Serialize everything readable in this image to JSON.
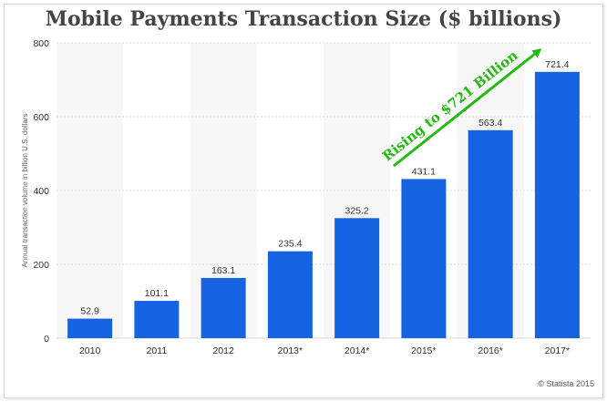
{
  "chart_data": {
    "type": "bar",
    "title": "Mobile Payments Transaction Size ($ billions)",
    "xlabel": "",
    "ylabel": "Annual transaction volume in billion U.S. dollars",
    "categories": [
      "2010",
      "2011",
      "2012",
      "2013*",
      "2014*",
      "2015*",
      "2016*",
      "2017*"
    ],
    "values": [
      52.9,
      101.1,
      163.1,
      235.4,
      325.2,
      431.1,
      563.4,
      721.4
    ],
    "value_labels": [
      "52.9",
      "101.1",
      "163.1",
      "235.4",
      "325.2",
      "431.1",
      "563.4",
      "721.4"
    ],
    "ylim": [
      0,
      800
    ],
    "yticks": [
      0,
      200,
      400,
      600,
      800
    ],
    "grid": true,
    "bar_color": "#1563e0",
    "annotation": {
      "text": "Rising to $721 Billion",
      "color": "#22bb11"
    }
  },
  "credit": "© Statista 2015"
}
